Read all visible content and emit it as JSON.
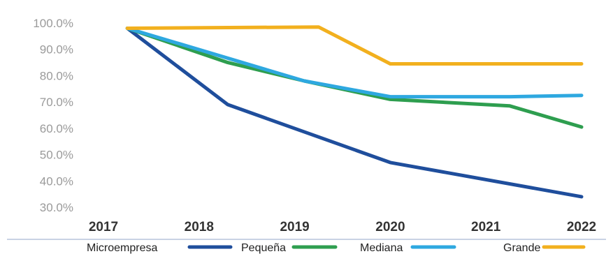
{
  "chart_data": {
    "type": "line",
    "title": "",
    "xlabel": "",
    "ylabel": "",
    "x": [
      "2017",
      "2018",
      "2019",
      "2020",
      "2021",
      "2022"
    ],
    "x_tick_labels": [
      "2017",
      "2018",
      "2019",
      "2020",
      "2021",
      "2022"
    ],
    "y_tick_labels": [
      "100.0%",
      "90.0%",
      "80.0%",
      "70.0%",
      "60.0%",
      "50.0%",
      "40.0%",
      "30.0%"
    ],
    "ylim": [
      30,
      100
    ],
    "grid": false,
    "legend_position": "bottom",
    "series": [
      {
        "name": "Microempresa",
        "color": "#1f4e9c",
        "points": [
          [
            2017.25,
            98
          ],
          [
            2018.3,
            69
          ],
          [
            2020.0,
            47
          ],
          [
            2022.0,
            34
          ]
        ]
      },
      {
        "name": "Pequeña",
        "color": "#2e9e4f",
        "points": [
          [
            2017.25,
            98
          ],
          [
            2018.3,
            85
          ],
          [
            2019.1,
            78
          ],
          [
            2020.0,
            71
          ],
          [
            2021.25,
            68.5
          ],
          [
            2022.0,
            60.5
          ]
        ]
      },
      {
        "name": "Mediana",
        "color": "#2ea8e0",
        "points": [
          [
            2017.25,
            98
          ],
          [
            2019.1,
            78
          ],
          [
            2020.0,
            72
          ],
          [
            2021.25,
            72
          ],
          [
            2022.0,
            72.5
          ]
        ]
      },
      {
        "name": "Grande",
        "color": "#f2b01e",
        "points": [
          [
            2017.25,
            98
          ],
          [
            2019.25,
            98.5
          ],
          [
            2020.0,
            84.5
          ],
          [
            2022.0,
            84.5
          ]
        ]
      }
    ]
  }
}
